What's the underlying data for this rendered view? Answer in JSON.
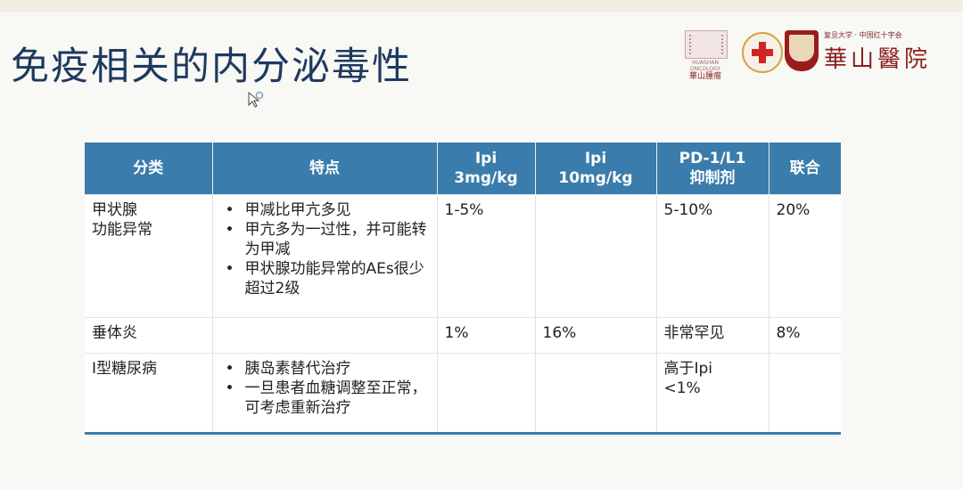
{
  "title": "免疫相关的内分泌毒性",
  "logos": {
    "left_caption_en": "HUASHAN ONCOLOGY",
    "left_caption_cn": "華山腫瘤",
    "small_text": "复旦大学 · 中国红十字会",
    "big_text": "華山醫院"
  },
  "table": {
    "headers": [
      "分类",
      "特点",
      "Ipi\n3mg/kg",
      "Ipi\n10mg/kg",
      "PD-1/L1\n抑制剂",
      "联合"
    ],
    "rows": [
      {
        "category": "甲状腺\n功能异常",
        "features": [
          "甲减比甲亢多见",
          "甲亢多为一过性，并可能转为甲减",
          "甲状腺功能异常的AEs很少超过2级"
        ],
        "ipi3": "1-5%",
        "ipi10": "",
        "pd1": "5-10%",
        "combo": "20%"
      },
      {
        "category": "垂体炎",
        "features": [],
        "ipi3": "1%",
        "ipi10": "16%",
        "pd1": "非常罕见",
        "combo": "8%"
      },
      {
        "category": "I型糖尿病",
        "features": [
          "胰岛素替代治疗",
          "一旦患者血糖调整至正常，可考虑重新治疗"
        ],
        "ipi3": "",
        "ipi10": "",
        "pd1": "高于Ipi\n<1%",
        "combo": ""
      }
    ]
  },
  "colors": {
    "header_bg": "#3a7cab",
    "title": "#1e3a5f",
    "highlight_red": "#c0392b"
  }
}
